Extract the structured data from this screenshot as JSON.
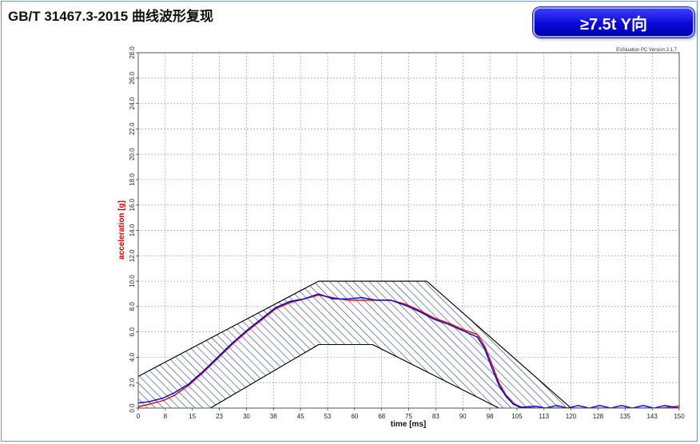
{
  "header": {
    "title": "GB/T 31467.3-2015 曲线波形复现",
    "badge": "≥7.5t Y向"
  },
  "chart_data": {
    "type": "line",
    "title": "",
    "xlabel": "time [ms]",
    "ylabel": "acceleration [g]",
    "watermark": "EVAluation PC Version 2.1.7",
    "xlim": [
      0,
      150
    ],
    "ylim": [
      0,
      28
    ],
    "x_tick_labels": [
      "0",
      "8",
      "15",
      "23",
      "30",
      "38",
      "45",
      "53",
      "60",
      "68",
      "75",
      "83",
      "90",
      "98",
      "105",
      "113",
      "120",
      "128",
      "135",
      "143",
      "150"
    ],
    "y_tick_labels": [
      "0.0",
      "2.0",
      "4.0",
      "6.0",
      "8.0",
      "10.0",
      "12.0",
      "14.0",
      "16.0",
      "18.0",
      "20.0",
      "22.0",
      "24.0",
      "26.0",
      "28.0"
    ],
    "grid": true,
    "corridor_upper": {
      "x": [
        0,
        50,
        80,
        120
      ],
      "y": [
        2.5,
        10,
        10,
        0
      ]
    },
    "corridor_lower": {
      "x": [
        20,
        50,
        65,
        100
      ],
      "y": [
        0,
        5,
        5,
        0
      ]
    },
    "series": [
      {
        "color": "#e00000",
        "x": [
          0,
          3,
          7,
          10,
          14,
          18,
          22,
          26,
          30,
          34,
          38,
          42,
          46,
          50,
          54,
          58,
          62,
          66,
          70,
          74,
          78,
          82,
          86,
          90,
          94,
          96,
          98,
          100,
          102,
          104,
          106,
          110,
          115,
          120,
          125,
          130,
          135,
          140,
          145,
          150
        ],
        "y": [
          0.1,
          0.3,
          0.6,
          1.0,
          1.8,
          2.8,
          3.9,
          5.0,
          6.0,
          6.9,
          7.8,
          8.3,
          8.6,
          8.9,
          8.7,
          8.5,
          8.5,
          8.5,
          8.5,
          8.2,
          7.7,
          7.1,
          6.7,
          6.2,
          5.8,
          4.9,
          3.5,
          2.0,
          1.0,
          0.35,
          0.1,
          0.0,
          0.0,
          0.0,
          0.0,
          0.0,
          0.0,
          0.0,
          0.0,
          0.15
        ]
      },
      {
        "color": "#0000cc",
        "x": [
          0,
          3,
          7,
          10,
          14,
          18,
          22,
          26,
          30,
          34,
          38,
          42,
          46,
          50,
          54,
          58,
          62,
          66,
          70,
          74,
          78,
          82,
          86,
          90,
          94,
          96,
          98,
          100,
          102,
          104,
          106,
          110,
          113,
          116,
          119,
          122,
          125,
          128,
          131,
          134,
          137,
          140,
          143,
          146,
          150
        ],
        "y": [
          0.4,
          0.5,
          0.8,
          1.2,
          1.9,
          2.9,
          4.0,
          5.1,
          6.1,
          7.0,
          7.9,
          8.4,
          8.6,
          9.0,
          8.6,
          8.6,
          8.7,
          8.5,
          8.5,
          8.1,
          7.6,
          7.0,
          6.6,
          6.1,
          5.6,
          4.7,
          3.2,
          1.8,
          0.9,
          0.3,
          0.05,
          0.15,
          0.0,
          0.2,
          0.0,
          0.2,
          0.0,
          0.2,
          0.0,
          0.2,
          0.0,
          0.2,
          0.0,
          0.2,
          0.0
        ]
      }
    ]
  }
}
